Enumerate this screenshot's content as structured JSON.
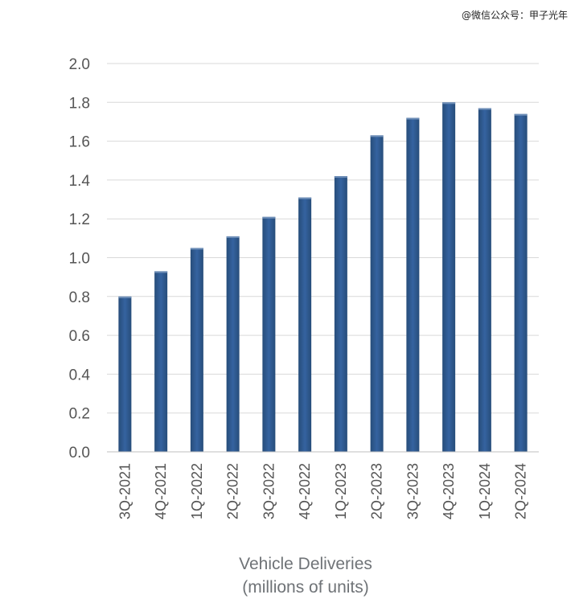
{
  "watermark": "@微信公众号：甲子光年",
  "chart_data": {
    "type": "bar",
    "categories": [
      "3Q-2021",
      "4Q-2021",
      "1Q-2022",
      "2Q-2022",
      "3Q-2022",
      "4Q-2022",
      "1Q-2023",
      "2Q-2023",
      "3Q-2023",
      "4Q-2023",
      "1Q-2024",
      "2Q-2024"
    ],
    "values": [
      0.8,
      0.93,
      1.05,
      1.11,
      1.21,
      1.31,
      1.42,
      1.63,
      1.72,
      1.8,
      1.77,
      1.74
    ],
    "ylim": [
      0,
      2.0
    ],
    "yticks": [
      "0.0",
      "0.2",
      "0.4",
      "0.6",
      "0.8",
      "1.0",
      "1.2",
      "1.4",
      "1.6",
      "1.8",
      "2.0"
    ],
    "xlabel_line1": "Vehicle Deliveries",
    "xlabel_line2": "(millions of units)",
    "grid": true,
    "legend": "none",
    "bar_color": "#2f5b8c"
  }
}
